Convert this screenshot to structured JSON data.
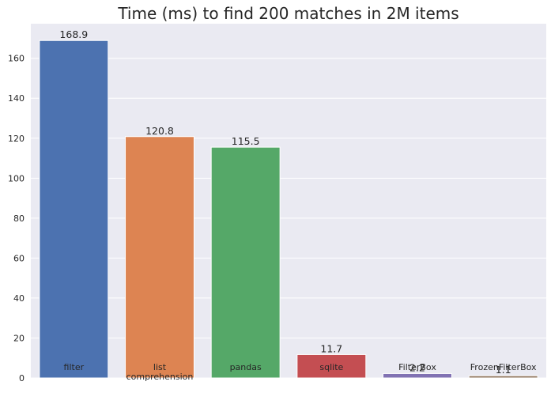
{
  "chart_data": {
    "type": "bar",
    "title": "Time (ms) to find 200 matches in 2M items",
    "xlabel": "",
    "ylabel": "",
    "categories": [
      [
        "filter"
      ],
      [
        "list",
        "comprehension"
      ],
      [
        "pandas"
      ],
      [
        "sqlite"
      ],
      [
        "FilterBox"
      ],
      [
        "FrozenFilterBox"
      ]
    ],
    "values": [
      168.9,
      120.8,
      115.5,
      11.7,
      2.2,
      1.1
    ],
    "value_labels": [
      "168.9",
      "120.8",
      "115.5",
      "11.7",
      "2.2",
      "1.1"
    ],
    "colors": [
      "#4c72b0",
      "#dd8452",
      "#55a868",
      "#c44e52",
      "#8172b3",
      "#937860"
    ],
    "ylim": [
      0,
      177.3
    ],
    "yticks": [
      0,
      20,
      40,
      60,
      80,
      100,
      120,
      140,
      160
    ],
    "grid": true,
    "background": "#eaeaf2",
    "legend": "none"
  }
}
